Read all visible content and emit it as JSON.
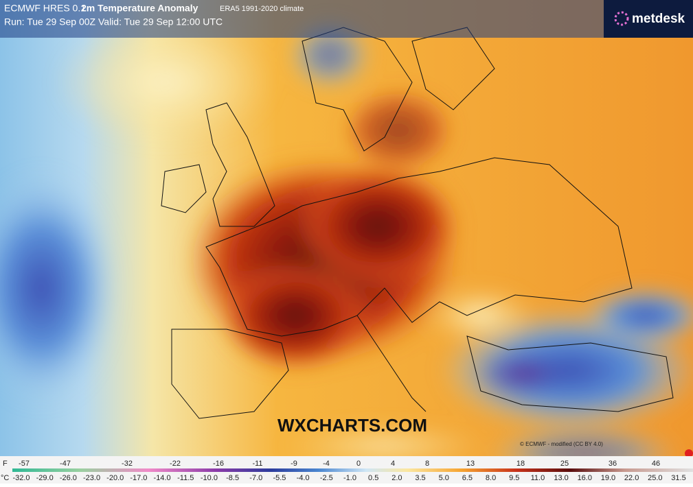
{
  "header": {
    "model": "ECMWF HRES 0.1",
    "title": "2m Temperature Anomaly",
    "climate": "ERA5 1991-2020 climate",
    "run": "Run: Tue 29 Sep 00Z Valid: Tue 29 Sep 12:00 UTC"
  },
  "logo": "metdesk",
  "watermark": "WXCHARTS.COM",
  "credit": "© ECMWF - modified (CC BY 4.0)",
  "colorbar": {
    "f_unit": "F",
    "f_labels": [
      "-57",
      "-47",
      "-32",
      "-22",
      "-16",
      "-11",
      "-9",
      "-4",
      "0",
      "4",
      "8",
      "13",
      "18",
      "25",
      "36",
      "46"
    ],
    "c_unit": "°C",
    "c_labels": [
      "-32.0",
      "-29.0",
      "-26.0",
      "-23.0",
      "-20.0",
      "-17.0",
      "-14.0",
      "-11.5",
      "-10.0",
      "-8.5",
      "-7.0",
      "-5.5",
      "-4.0",
      "-2.5",
      "-1.0",
      "0.5",
      "2.0",
      "3.5",
      "5.0",
      "6.5",
      "8.0",
      "9.5",
      "11.0",
      "13.0",
      "16.0",
      "19.0",
      "22.0",
      "25.0",
      "31.5"
    ]
  }
}
